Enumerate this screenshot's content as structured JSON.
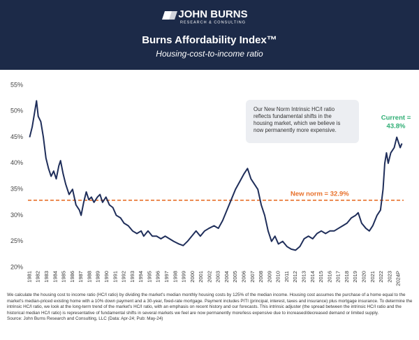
{
  "header": {
    "logo": "JOHN BURNS",
    "logo_sub": "RESEARCH & CONSULTING"
  },
  "chart_data": {
    "type": "line",
    "title": "Burns Affordability Index™",
    "subtitle": "Housing-cost-to-income ratio",
    "color": "#1f2e5a",
    "x": [
      1981.0,
      1981.3,
      1981.6,
      1981.8,
      1982.0,
      1982.3,
      1982.6,
      1982.9,
      1983.2,
      1983.5,
      1983.8,
      1984.1,
      1984.4,
      1984.6,
      1984.9,
      1985.2,
      1985.6,
      1986.0,
      1986.4,
      1986.8,
      1987.0,
      1987.3,
      1987.6,
      1987.9,
      1988.2,
      1988.5,
      1988.9,
      1989.2,
      1989.5,
      1989.9,
      1990.3,
      1990.7,
      1991.1,
      1991.6,
      1992.0,
      1992.5,
      1993.0,
      1993.5,
      1994.0,
      1994.3,
      1994.8,
      1995.3,
      1995.8,
      1996.3,
      1996.8,
      1997.3,
      1997.8,
      1998.4,
      1998.9,
      1999.4,
      1999.9,
      2000.4,
      2000.9,
      2001.4,
      2001.9,
      2002.5,
      2003.0,
      2003.5,
      2004.0,
      2004.5,
      2005.0,
      2005.5,
      2006.0,
      2006.4,
      2006.8,
      2007.2,
      2007.6,
      2008.0,
      2008.4,
      2008.8,
      2009.2,
      2009.6,
      2010.0,
      2010.5,
      2011.0,
      2011.5,
      2012.0,
      2012.5,
      2013.0,
      2013.5,
      2014.0,
      2014.5,
      2015.0,
      2015.5,
      2016.0,
      2016.5,
      2017.0,
      2017.5,
      2018.0,
      2018.5,
      2019.0,
      2019.3,
      2019.7,
      2020.2,
      2020.6,
      2021.0,
      2021.5,
      2021.9,
      2022.2,
      2022.4,
      2022.6,
      2022.8,
      2023.1,
      2023.5,
      2023.8,
      2024.0,
      2024.2,
      2024.4
    ],
    "values": [
      45,
      47,
      50,
      52,
      49,
      48,
      45,
      41,
      39,
      37.5,
      38.5,
      37,
      39.5,
      40.5,
      38,
      36,
      34,
      35,
      32,
      31,
      30,
      32.5,
      34.5,
      33,
      33.5,
      32.5,
      33.5,
      34,
      32.5,
      33.5,
      32,
      31.5,
      30,
      29.5,
      28.5,
      28,
      27,
      26.5,
      27,
      26,
      27,
      26,
      26,
      25.5,
      26,
      25.5,
      25,
      24.5,
      24.2,
      25,
      26,
      27,
      26,
      27,
      27.5,
      28,
      27.5,
      29,
      31,
      33,
      35,
      36.5,
      38,
      39,
      37,
      36,
      35,
      32,
      30,
      27,
      25,
      26,
      24.5,
      25,
      24,
      23.5,
      23.3,
      24,
      25.5,
      26,
      25.5,
      26.5,
      27,
      26.5,
      27,
      27,
      27.5,
      28,
      28.5,
      29.5,
      30,
      30.5,
      28.5,
      27.5,
      27,
      28,
      30,
      31,
      35,
      40,
      42,
      40,
      42,
      43,
      45,
      44,
      43,
      43.8
    ],
    "xlim": [
      1980.8,
      2024.6
    ],
    "xticks": [
      1981,
      1982,
      1983,
      1984,
      1985,
      1986,
      1987,
      1988,
      1989,
      1990,
      1991,
      1992,
      1993,
      1994,
      1995,
      1996,
      1997,
      1998,
      1999,
      2000,
      2001,
      2002,
      2003,
      2004,
      2005,
      2006,
      2007,
      2008,
      2009,
      2010,
      2011,
      2012,
      2013,
      2014,
      2015,
      2016,
      2017,
      2018,
      2019,
      2020,
      2021,
      2022,
      2023,
      {
        "value": 2024,
        "label": "2024P"
      }
    ],
    "ylim": [
      20,
      55
    ],
    "yticks": [
      {
        "value": 20,
        "label": "20%"
      },
      {
        "value": 25,
        "label": "25%"
      },
      {
        "value": 30,
        "label": "30%"
      },
      {
        "value": 35,
        "label": "35%"
      },
      {
        "value": 40,
        "label": "40%"
      },
      {
        "value": 45,
        "label": "45%"
      },
      {
        "value": 50,
        "label": "50%"
      },
      {
        "value": 55,
        "label": "55%"
      }
    ],
    "reference_line": {
      "value": 32.9,
      "label": "New norm = 32.9%",
      "color": "#e8702a"
    },
    "current_label": [
      "Current =",
      "43.8%"
    ],
    "note": [
      "Our New Norm Intrinsic HC/I ratio",
      "reflects fundamental shifts in the",
      "housing market, which we believe is",
      "now permanently more expensive."
    ]
  },
  "footnote": "We calculate the housing cost to income ratio (HC/I ratio) by dividing the market's median monthly housing costs by 125% of the median income. Housing cost assumes the purchase of a home equal to the market's median-priced existing home with a 10% down payment and a 30-year, fixed-rate mortgage. Payment includes PITI (principal, interest, taxes and insurance) plus mortgage insurance. To determine the intrinsic HC/I ratio, we look at the long-term trend of the market's HC/I ratio, with an emphasis on recent history and our forecasts. This intrinsic adjuster (the spread between the intrinsic HC/I ratio and the historical median HC/I ratio) is representative of fundamental shifts in several markets we feel are now permanently more/less expensive due to increased/decreased demand or limited supply.",
  "source": "Source: John Burns Research and Consulting, LLC (Data: Apr-24; Pub: May-24)"
}
